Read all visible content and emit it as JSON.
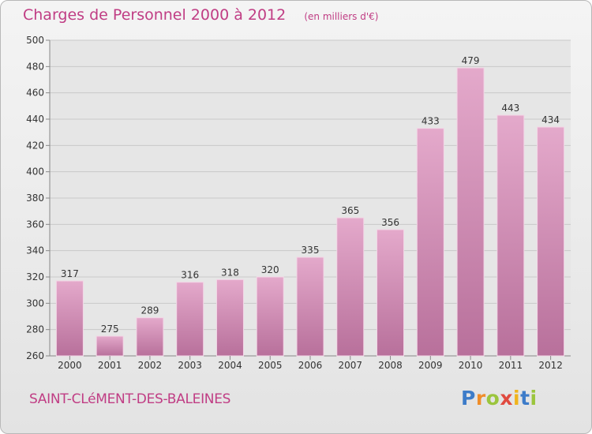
{
  "chart_data": {
    "type": "bar",
    "title": "Charges de Personnel 2000 à 2012",
    "subtitle": "(en milliers d'€)",
    "categories": [
      "2000",
      "2001",
      "2002",
      "2003",
      "2004",
      "2005",
      "2006",
      "2007",
      "2008",
      "2009",
      "2010",
      "2011",
      "2012"
    ],
    "values": [
      317,
      275,
      289,
      316,
      318,
      320,
      335,
      365,
      356,
      433,
      479,
      443,
      434
    ],
    "ylim": [
      260,
      500
    ],
    "yticks": [
      260,
      280,
      300,
      320,
      340,
      360,
      380,
      400,
      420,
      440,
      460,
      480,
      500
    ],
    "grid": true,
    "bar_color": "#d98db8"
  },
  "footer": {
    "commune": "SAINT-CLéMENT-DES-BALEINES",
    "logo_letters": [
      "P",
      "r",
      "o",
      "x",
      "i",
      "t",
      "i"
    ],
    "logo_colors": [
      "#3d7cc9",
      "#ef8d2a",
      "#9bc53d",
      "#e04a3f",
      "#f0b41d",
      "#3d7cc9",
      "#9bc53d"
    ]
  }
}
